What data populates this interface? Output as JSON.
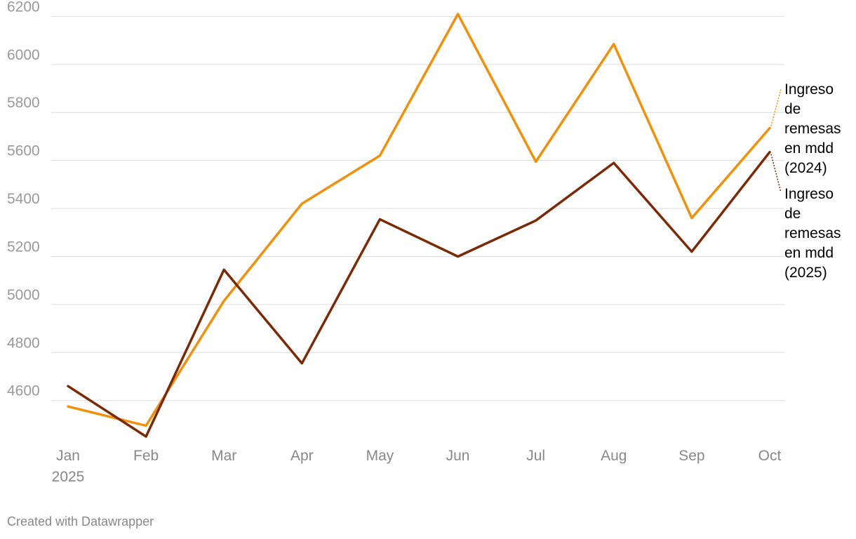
{
  "chart_data": {
    "type": "line",
    "categories": [
      "Jan",
      "Feb",
      "Mar",
      "Apr",
      "May",
      "Jun",
      "Jul",
      "Aug",
      "Sep",
      "Oct"
    ],
    "x_year_label": "2025",
    "yticks": [
      4600,
      4800,
      5000,
      5200,
      5400,
      5600,
      5800,
      6000,
      6200
    ],
    "ylim": [
      4450,
      6210
    ],
    "grid": true,
    "series": [
      {
        "name": "Ingreso de remesas en mdd (2024)",
        "label_lines": [
          "Ingreso",
          "de",
          "remesas",
          "en mdd",
          "(2024)"
        ],
        "color": "#f0900c",
        "values": [
          4575,
          4495,
          5015,
          5420,
          5620,
          6210,
          5595,
          6085,
          5360,
          5735
        ]
      },
      {
        "name": "Ingreso de remesas en mdd (2025)",
        "label_lines": [
          "Ingreso",
          "de",
          "remesas",
          "en mdd",
          "(2025)"
        ],
        "color": "#7a2a06",
        "values": [
          4660,
          4450,
          5145,
          4755,
          5355,
          5200,
          5350,
          5590,
          5220,
          5635
        ]
      }
    ]
  },
  "footer": {
    "credit": "Created with Datawrapper"
  }
}
